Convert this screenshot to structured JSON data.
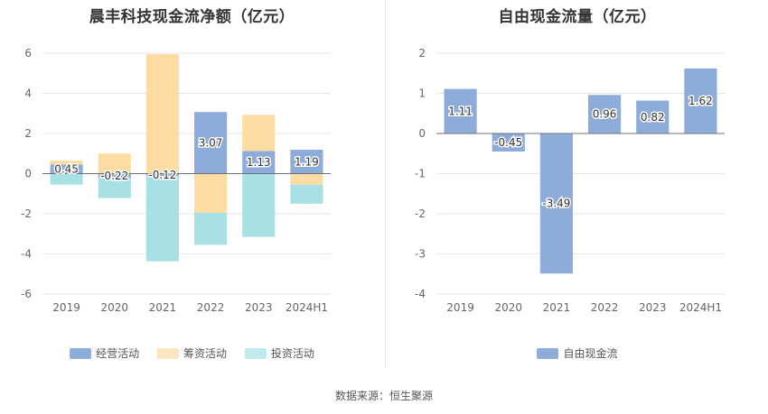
{
  "colors": {
    "operating": "#8dacd9",
    "financing": "#fddca2",
    "investing": "#8ad4d9",
    "fcf": "#8dacd9",
    "grid": "#e6e6e6",
    "axis": "#6e7079",
    "tick_text": "#666666"
  },
  "source_text": "数据来源：恒生聚源",
  "chart_data": [
    {
      "type": "bar",
      "title": "晨丰科技现金流净额（亿元）",
      "stacked": true,
      "categories": [
        "2019",
        "2020",
        "2021",
        "2022",
        "2023",
        "2024H1"
      ],
      "ylim": [
        -6,
        6
      ],
      "yticks": [
        6,
        4,
        2,
        0,
        -2,
        -4,
        -6
      ],
      "grid": true,
      "legend_position": "bottom",
      "series": [
        {
          "name": "经营活动",
          "color": "#8dacd9",
          "values": [
            0.45,
            -0.22,
            -0.12,
            3.07,
            1.13,
            1.19
          ],
          "labels": [
            "0.45",
            "-0.22",
            "-0.12",
            "3.07",
            "1.13",
            "1.19"
          ]
        },
        {
          "name": "筹资活动",
          "color": "#fddca2",
          "values": [
            0.2,
            1.0,
            5.95,
            -1.95,
            1.8,
            -0.55
          ]
        },
        {
          "name": "投资活动",
          "color": "#a9e0e4",
          "values": [
            -0.55,
            -1.0,
            -4.25,
            -1.6,
            -3.15,
            -0.95
          ]
        }
      ]
    },
    {
      "type": "bar",
      "title": "自由现金流量（亿元）",
      "categories": [
        "2019",
        "2020",
        "2021",
        "2022",
        "2023",
        "2024H1"
      ],
      "ylim": [
        -4,
        2
      ],
      "yticks": [
        2,
        1,
        0,
        -1,
        -2,
        -3,
        -4
      ],
      "grid": true,
      "legend_position": "bottom",
      "series": [
        {
          "name": "自由现金流",
          "color": "#8dacd9",
          "values": [
            1.11,
            -0.45,
            -3.49,
            0.96,
            0.82,
            1.62
          ],
          "labels": [
            "1.11",
            "-0.45",
            "-3.49",
            "0.96",
            "0.82",
            "1.62"
          ]
        }
      ]
    }
  ]
}
